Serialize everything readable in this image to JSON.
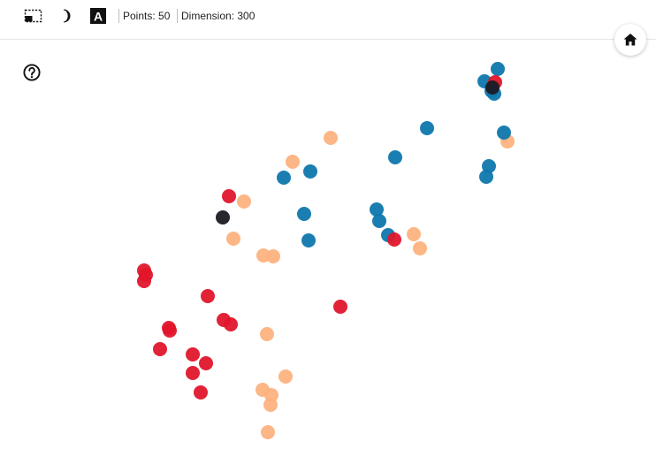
{
  "toolbar": {
    "select_icon": "rectangle-select-icon",
    "theme_icon": "dark-mode-moon-icon",
    "label_icon": "label-a-icon",
    "label_letter": "A",
    "points_text": "Points: 50",
    "dimension_text": "Dimension: 300"
  },
  "controls": {
    "home_icon": "home-icon",
    "help_icon": "help-circle-icon"
  },
  "colors": {
    "blue": "#0f77ad",
    "orange": "#fdb27e",
    "red": "#e0162b",
    "black": "#1b1b24"
  }
}
